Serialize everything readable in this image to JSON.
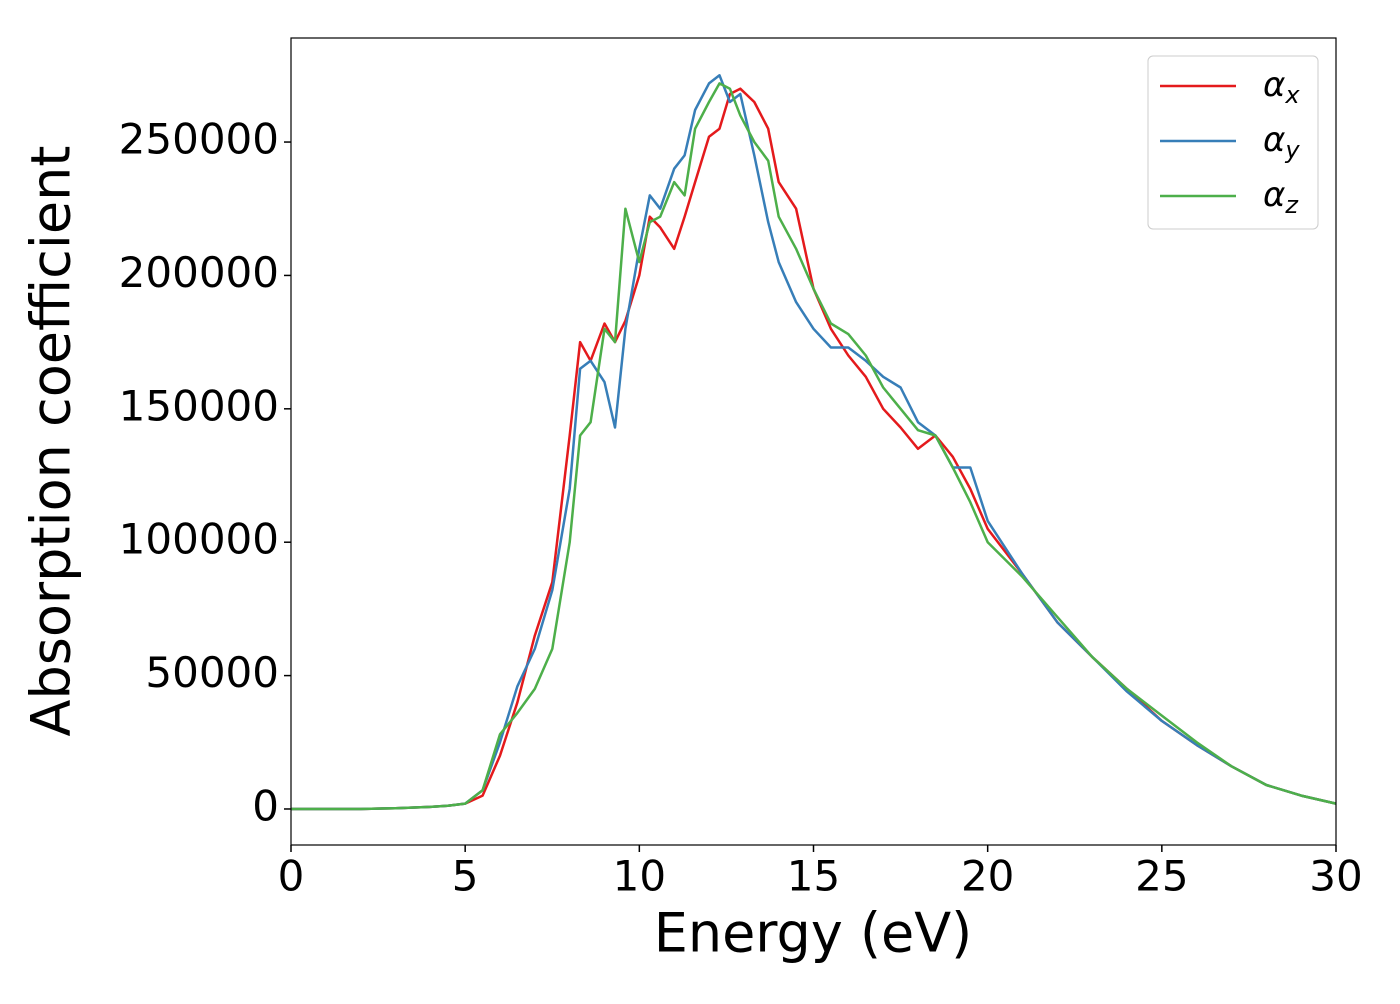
{
  "chart_data": {
    "type": "line",
    "xlabel": "Energy (eV)",
    "ylabel": "Absorption coefficient",
    "x": [
      0,
      1,
      2,
      3,
      4,
      4.5,
      5,
      5.5,
      6,
      6.5,
      7,
      7.5,
      8,
      8.3,
      8.6,
      9,
      9.3,
      9.6,
      10,
      10.3,
      10.6,
      11,
      11.3,
      11.6,
      12,
      12.3,
      12.6,
      12.9,
      13.3,
      13.7,
      14,
      14.5,
      15,
      15.5,
      16,
      16.5,
      17,
      17.5,
      18,
      18.5,
      19,
      19.5,
      20,
      21,
      22,
      23,
      24,
      25,
      26,
      27,
      28,
      29,
      30
    ],
    "series": [
      {
        "name": "αx",
        "color": "#e41a1c",
        "values": [
          0,
          0,
          0,
          300,
          800,
          1200,
          2000,
          5000,
          20000,
          40000,
          65000,
          85000,
          140000,
          175000,
          168000,
          182000,
          175000,
          183000,
          200000,
          222000,
          218000,
          210000,
          222000,
          235000,
          252000,
          255000,
          268000,
          270000,
          265000,
          255000,
          235000,
          225000,
          195000,
          180000,
          170000,
          162000,
          150000,
          143000,
          135000,
          140000,
          132000,
          120000,
          105000,
          88000,
          70000,
          57000,
          45000,
          33000,
          24000,
          16000,
          9000,
          5000,
          2000
        ]
      },
      {
        "name": "αy",
        "color": "#377eb8",
        "values": [
          0,
          0,
          0,
          300,
          800,
          1200,
          2000,
          7000,
          25000,
          46000,
          60000,
          82000,
          120000,
          165000,
          168000,
          160000,
          143000,
          180000,
          210000,
          230000,
          225000,
          240000,
          245000,
          262000,
          272000,
          275000,
          265000,
          268000,
          245000,
          220000,
          205000,
          190000,
          180000,
          173000,
          173000,
          168000,
          162000,
          158000,
          145000,
          140000,
          128000,
          128000,
          108000,
          88000,
          70000,
          57000,
          44000,
          33000,
          24000,
          16000,
          9000,
          5000,
          2000
        ]
      },
      {
        "name": "αz",
        "color": "#4daf4a",
        "values": [
          0,
          0,
          0,
          300,
          800,
          1200,
          2000,
          7000,
          28000,
          36000,
          45000,
          60000,
          100000,
          140000,
          145000,
          180000,
          175000,
          225000,
          205000,
          220000,
          222000,
          235000,
          230000,
          255000,
          265000,
          272000,
          270000,
          260000,
          250000,
          243000,
          222000,
          210000,
          195000,
          182000,
          178000,
          170000,
          158000,
          150000,
          142000,
          140000,
          128000,
          115000,
          100000,
          87000,
          72000,
          57000,
          45000,
          35000,
          25000,
          16000,
          9000,
          5000,
          2000
        ]
      }
    ],
    "xlim": [
      0,
      30
    ],
    "xticks": [
      0,
      5,
      10,
      15,
      20,
      25,
      30
    ],
    "ylim": [
      -13500,
      289000
    ],
    "yticks": [
      0,
      50000,
      100000,
      150000,
      200000,
      250000
    ],
    "legend": "upper right"
  }
}
